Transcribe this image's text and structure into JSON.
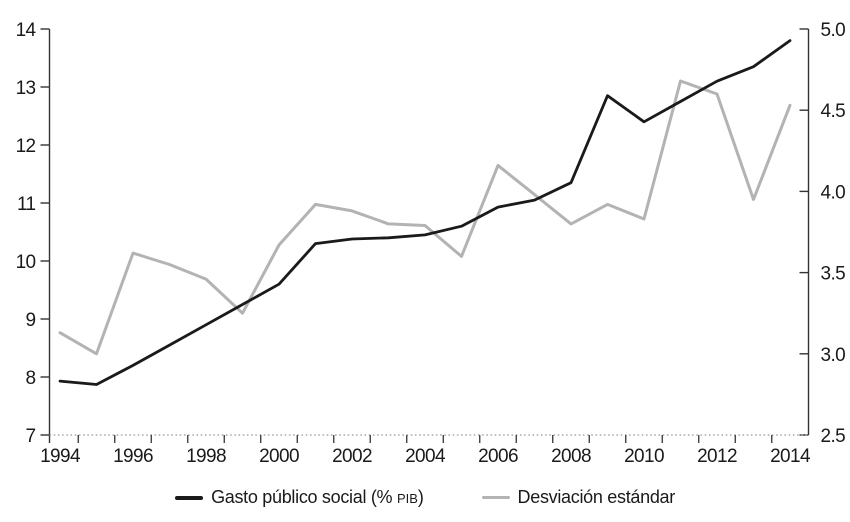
{
  "figure": {
    "background": "#ffffff",
    "accent_black": "#1a1a1a",
    "accent_gray": "#b3b3b3"
  },
  "chart_data": {
    "type": "line",
    "x": [
      1994,
      1995,
      1996,
      1997,
      1998,
      1999,
      2000,
      2001,
      2002,
      2003,
      2004,
      2005,
      2006,
      2007,
      2008,
      2009,
      2010,
      2011,
      2012,
      2013,
      2014
    ],
    "series": [
      {
        "name": "Gasto público social (% PIB)",
        "axis": "left",
        "color": "#1a1a1a",
        "stroke_width": 2.8,
        "values": [
          7.93,
          7.87,
          8.2,
          8.55,
          8.9,
          9.25,
          9.6,
          10.3,
          10.38,
          10.4,
          10.45,
          10.6,
          10.93,
          11.05,
          11.35,
          12.85,
          12.4,
          12.75,
          13.1,
          13.35,
          13.8
        ]
      },
      {
        "name": "Desviación estándar",
        "axis": "right",
        "color": "#b3b3b3",
        "stroke_width": 3,
        "values": [
          3.13,
          3.0,
          3.62,
          3.55,
          3.46,
          3.25,
          3.67,
          3.92,
          3.88,
          3.8,
          3.79,
          3.6,
          4.16,
          3.98,
          3.8,
          3.92,
          3.83,
          4.68,
          4.6,
          3.95,
          4.53
        ]
      }
    ],
    "left_axis": {
      "min": 7,
      "max": 14,
      "ticks": [
        14,
        13,
        12,
        11,
        10,
        9,
        8,
        7
      ],
      "tick_labels": [
        "14",
        "13",
        "12",
        "11",
        "10",
        "9",
        "8",
        "7"
      ]
    },
    "right_axis": {
      "min": 2.5,
      "max": 5.0,
      "ticks": [
        5.0,
        4.5,
        4.0,
        3.5,
        3.0,
        2.5
      ],
      "tick_labels": [
        "5.0",
        "4.5",
        "4.0",
        "3.5",
        "3.0",
        "2.5"
      ]
    },
    "x_tick_labels": [
      "1994",
      "1996",
      "1998",
      "2000",
      "2002",
      "2004",
      "2006",
      "2008",
      "2010",
      "2012",
      "2014"
    ],
    "grid": false,
    "legend_position": "bottom"
  },
  "legend": {
    "gasto": {
      "pre": "Gasto público social (% ",
      "smallcaps": "PIB",
      "post": ")"
    },
    "desviacion": {
      "label": "Desviación estándar"
    }
  }
}
